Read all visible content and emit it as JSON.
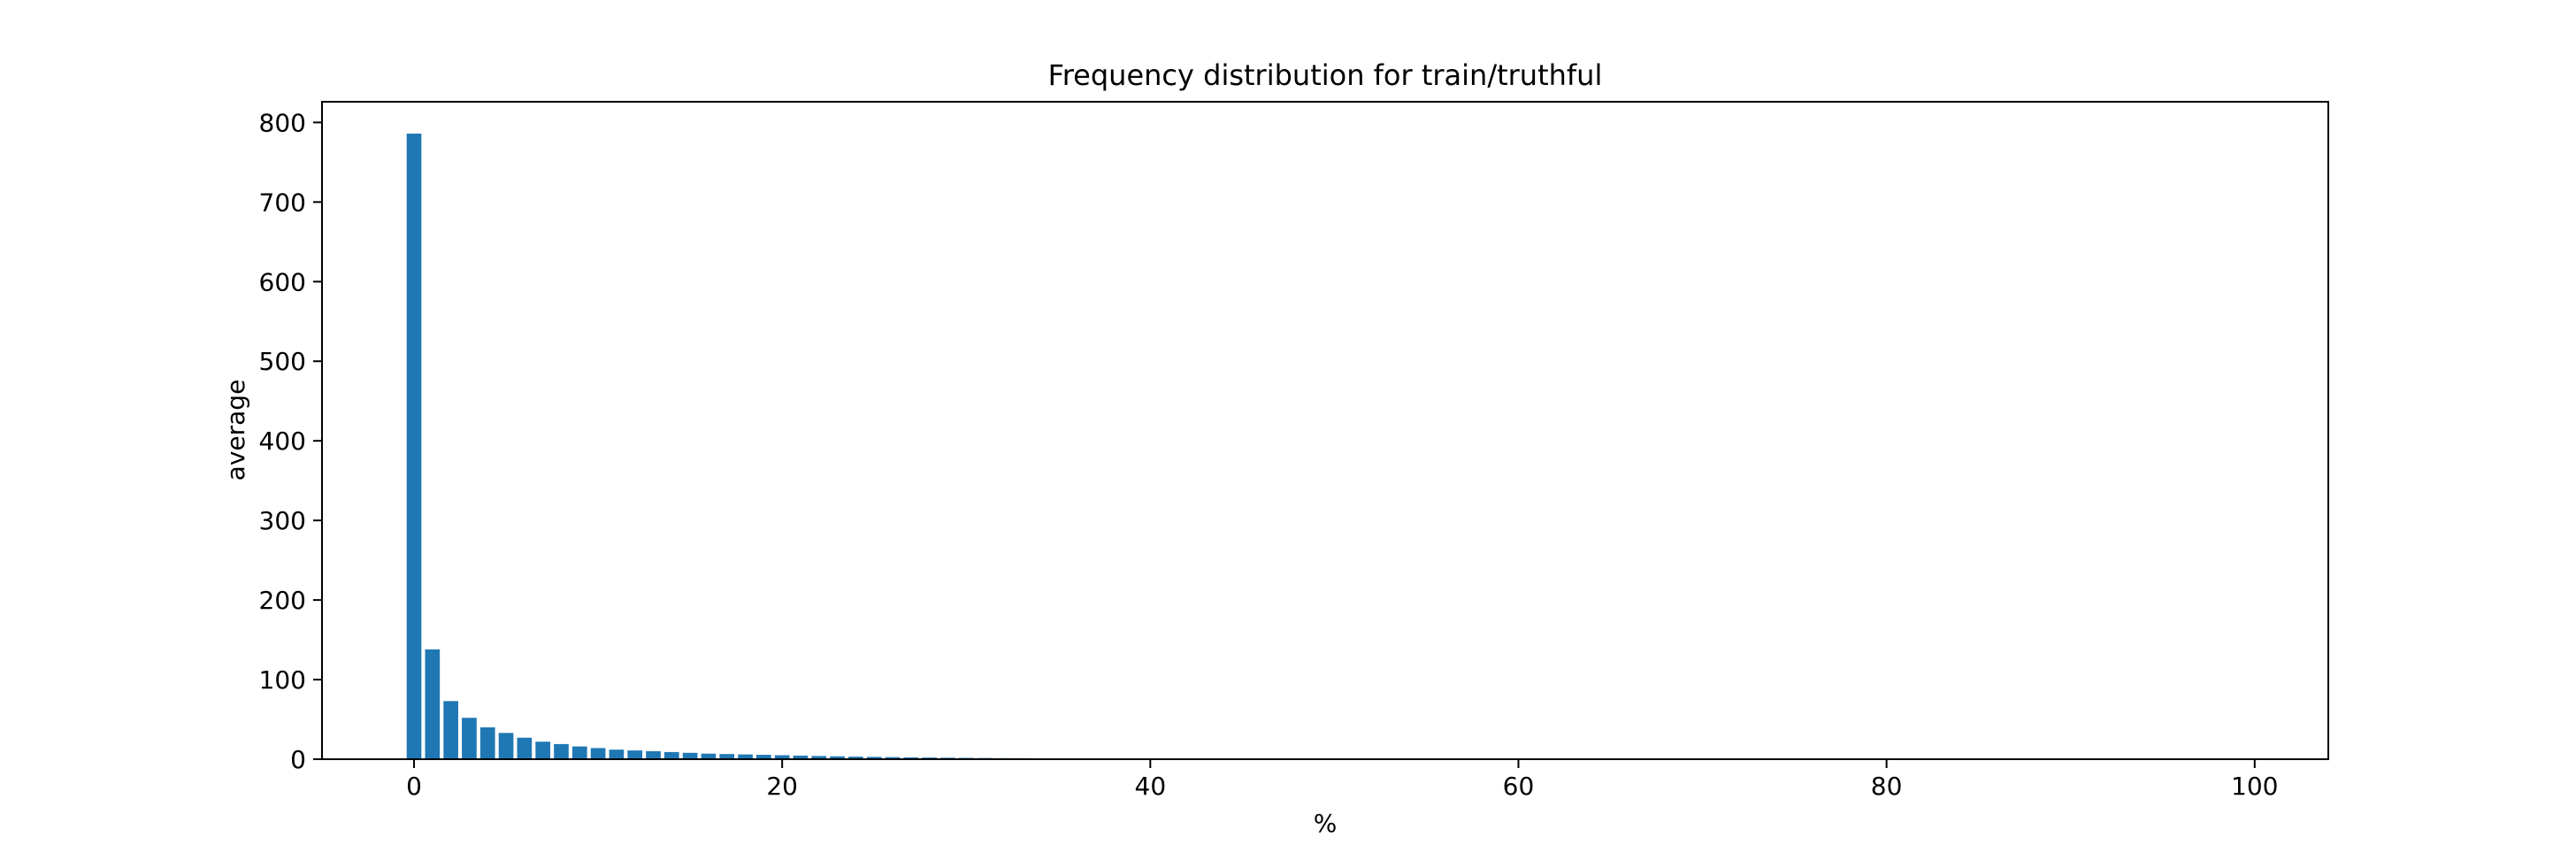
{
  "chart_data": {
    "type": "bar",
    "title": "Frequency distribution for train/truthful",
    "xlabel": "%",
    "ylabel": "average",
    "x": [
      0,
      1,
      2,
      3,
      4,
      5,
      6,
      7,
      8,
      9,
      10,
      11,
      12,
      13,
      14,
      15,
      16,
      17,
      18,
      19,
      20,
      21,
      22,
      23,
      24,
      25,
      26,
      27,
      28,
      29,
      30,
      31,
      32,
      33,
      34,
      35,
      36,
      37,
      38,
      39,
      40,
      41,
      42,
      43,
      44,
      45,
      46,
      47,
      48,
      49,
      50,
      51,
      52,
      53,
      54,
      55,
      56,
      57,
      58,
      59,
      60,
      61,
      62,
      63,
      64,
      65,
      66,
      67,
      68,
      69,
      70,
      71,
      72,
      73,
      74,
      75,
      76,
      77,
      78,
      79,
      80,
      81,
      82,
      83,
      84,
      85,
      86,
      87,
      88,
      89,
      90,
      91,
      92,
      93,
      94,
      95,
      96,
      97,
      98,
      99,
      100
    ],
    "values": [
      786,
      138,
      73,
      52,
      40,
      33,
      27,
      22,
      19,
      16,
      14,
      12,
      11,
      10,
      9,
      8,
      7,
      6.5,
      6,
      5.5,
      5,
      4.5,
      4,
      3.6,
      3.2,
      2.9,
      2.6,
      2.3,
      2.1,
      1.9,
      1.7,
      1.5,
      1.3,
      1.2,
      1.1,
      1.0,
      0.6,
      0.5,
      0.4,
      0.3,
      0.25,
      0.2,
      0.15,
      0.12,
      0.1,
      0.08,
      0.06,
      0.05,
      0.04,
      0.03,
      0.02,
      0.02,
      0.01,
      0.01,
      0.01,
      0,
      0,
      0,
      0,
      0,
      0,
      0,
      0,
      0,
      0,
      0,
      0,
      0,
      0,
      0,
      0,
      0,
      0,
      0,
      0,
      0,
      0,
      0,
      0,
      0,
      0,
      0,
      0,
      0,
      0,
      0,
      0,
      0,
      0,
      0,
      0,
      0,
      0,
      0,
      0,
      0,
      0,
      0,
      0,
      0,
      0
    ],
    "xlim": [
      -5,
      104
    ],
    "ylim": [
      0,
      826
    ],
    "x_ticks": [
      "0",
      "20",
      "40",
      "60",
      "80",
      "100"
    ],
    "y_ticks": [
      "0",
      "100",
      "200",
      "300",
      "400",
      "500",
      "600",
      "700",
      "800"
    ],
    "grid": false,
    "bar_color": "#1f77b4"
  }
}
